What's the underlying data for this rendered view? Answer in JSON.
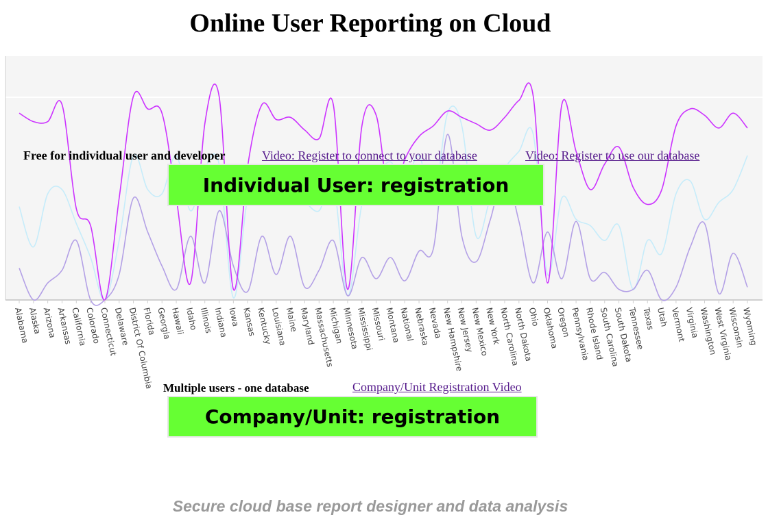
{
  "title": "Online User Reporting on Cloud",
  "individual": {
    "label": "Free for individual user and developer",
    "video_link_1": "Video: Register to connect to your database",
    "video_link_2": "Video: Register to use our database",
    "button": "Individual User: registration"
  },
  "company": {
    "label": "Multiple users - one database",
    "video_link": "Company/Unit Registration Video",
    "button": "Company/Unit: registration"
  },
  "footer": "Secure cloud base report designer and data analysis",
  "colors": {
    "button_bg": "#66ff33",
    "series_1": "#cc33ff",
    "series_2": "#c6ecfa",
    "series_3": "#b3a0e6",
    "plot_bg": "#f5f5f5"
  },
  "chart_data": {
    "type": "line",
    "title": "",
    "ylim": [
      0,
      100
    ],
    "categories": [
      "Alabama",
      "Alaska",
      "Arizona",
      "Arkansas",
      "California",
      "Colorado",
      "Connecticut",
      "Delaware",
      "District Of Columbia",
      "Florida",
      "Georgia",
      "Hawaii",
      "Idaho",
      "Illinois",
      "Indiana",
      "Iowa",
      "Kansas",
      "Kentucky",
      "Louisiana",
      "Maine",
      "Maryland",
      "Massachusetts",
      "Michigan",
      "Minnesota",
      "Mississippi",
      "Missouri",
      "Montana",
      "National",
      "Nebraska",
      "Nevada",
      "New Hampshire",
      "New Jersey",
      "New Mexico",
      "New York",
      "North Carolina",
      "North Dakota",
      "Ohio",
      "Oklahoma",
      "Oregon",
      "Pennsylvania",
      "Rhode Island",
      "South Carolina",
      "South Dakota",
      "Tennessee",
      "Texas",
      "Utah",
      "Vermont",
      "Virginia",
      "Washington",
      "West Virginia",
      "Wisconsin",
      "Wyoming"
    ],
    "series": [
      {
        "values": [
          88,
          84,
          84,
          92,
          43,
          35,
          0,
          48,
          96,
          90,
          88,
          48,
          8,
          83,
          96,
          5,
          63,
          92,
          85,
          86,
          80,
          76,
          92,
          5,
          82,
          87,
          45,
          66,
          77,
          82,
          89,
          86,
          83,
          80,
          86,
          94,
          96,
          8,
          92,
          70,
          52,
          64,
          72,
          53,
          45,
          52,
          82,
          90,
          87,
          81,
          88,
          81
        ]
      },
      {
        "values": [
          44,
          25,
          50,
          52,
          36,
          20,
          0,
          28,
          68,
          52,
          50,
          68,
          42,
          62,
          64,
          1,
          48,
          55,
          50,
          48,
          46,
          42,
          55,
          2,
          45,
          58,
          65,
          55,
          68,
          45,
          88,
          82,
          30,
          48,
          62,
          70,
          78,
          12,
          48,
          38,
          35,
          28,
          35,
          5,
          28,
          22,
          50,
          56,
          38,
          46,
          52,
          68
        ]
      },
      {
        "values": [
          15,
          0,
          8,
          14,
          28,
          0,
          0,
          12,
          48,
          32,
          16,
          5,
          30,
          8,
          42,
          16,
          4,
          30,
          12,
          30,
          6,
          14,
          28,
          2,
          20,
          10,
          20,
          9,
          23,
          24,
          78,
          30,
          18,
          38,
          60,
          37,
          8,
          32,
          10,
          37,
          10,
          13,
          5,
          5,
          14,
          0,
          6,
          25,
          36,
          3,
          22,
          6
        ]
      }
    ]
  }
}
